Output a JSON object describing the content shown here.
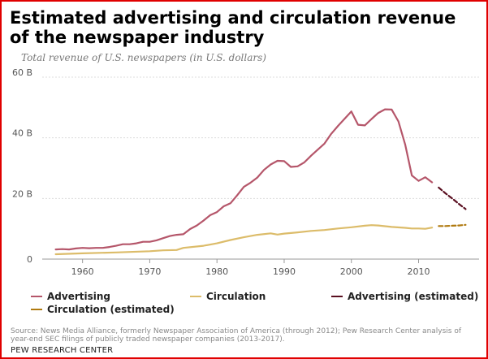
{
  "title": "Estimated advertising and circulation revenue of the newspaper industry",
  "subtitle": "Total revenue of U.S. newspapers (in U.S. dollars)",
  "chart_data": {
    "type": "line",
    "ylim": [
      0,
      60
    ],
    "xlim": [
      1954,
      2019
    ],
    "y_ticks": [
      {
        "value": 0,
        "label": "0"
      },
      {
        "value": 20,
        "label": "20 B"
      },
      {
        "value": 40,
        "label": "40 B"
      },
      {
        "value": 60,
        "label": "60 B"
      }
    ],
    "x_ticks": [
      {
        "value": 1960,
        "label": "1960"
      },
      {
        "value": 1970,
        "label": "1970"
      },
      {
        "value": 1980,
        "label": "1980"
      },
      {
        "value": 1990,
        "label": "1990"
      },
      {
        "value": 2000,
        "label": "2000"
      },
      {
        "value": 2010,
        "label": "2010"
      }
    ],
    "grid": true,
    "legend_position": "bottom",
    "series": [
      {
        "name": "Advertising",
        "color": "#b5566a",
        "dash": "",
        "x": [
          1956,
          1957,
          1958,
          1959,
          1960,
          1961,
          1962,
          1963,
          1964,
          1965,
          1966,
          1967,
          1968,
          1969,
          1970,
          1971,
          1972,
          1973,
          1974,
          1975,
          1976,
          1977,
          1978,
          1979,
          1980,
          1981,
          1982,
          1983,
          1984,
          1985,
          1986,
          1987,
          1988,
          1989,
          1990,
          1991,
          1992,
          1993,
          1994,
          1995,
          1996,
          1997,
          1998,
          1999,
          2000,
          2001,
          2002,
          2003,
          2004,
          2005,
          2006,
          2007,
          2008,
          2009,
          2010,
          2011,
          2012
        ],
        "values": [
          3.2,
          3.3,
          3.2,
          3.5,
          3.7,
          3.6,
          3.7,
          3.7,
          4.0,
          4.4,
          4.9,
          4.9,
          5.2,
          5.7,
          5.7,
          6.2,
          6.9,
          7.6,
          8.0,
          8.2,
          9.9,
          11.1,
          12.7,
          14.5,
          15.5,
          17.4,
          18.4,
          21.0,
          23.8,
          25.2,
          26.9,
          29.4,
          31.2,
          32.4,
          32.3,
          30.4,
          30.6,
          31.9,
          34.1,
          36.1,
          38.1,
          41.3,
          43.9,
          46.3,
          48.7,
          44.3,
          44.1,
          46.2,
          48.2,
          49.4,
          49.3,
          45.4,
          37.8,
          27.6,
          25.8,
          27.0,
          25.3
        ]
      },
      {
        "name": "Circulation",
        "color": "#dcbc6a",
        "dash": "",
        "x": [
          1956,
          1960,
          1965,
          1970,
          1972,
          1974,
          1975,
          1978,
          1980,
          1982,
          1984,
          1986,
          1988,
          1989,
          1990,
          1992,
          1994,
          1996,
          1998,
          2000,
          2002,
          2003,
          2004,
          2006,
          2008,
          2009,
          2010,
          2011,
          2012
        ],
        "values": [
          1.6,
          1.9,
          2.2,
          2.6,
          2.9,
          3.0,
          3.7,
          4.4,
          5.2,
          6.3,
          7.2,
          8.0,
          8.5,
          8.1,
          8.4,
          8.8,
          9.3,
          9.6,
          10.1,
          10.5,
          11.0,
          11.2,
          11.1,
          10.6,
          10.3,
          10.1,
          10.1,
          10.0,
          10.4
        ]
      },
      {
        "name": "Advertising (estimated)",
        "color": "#5a0f20",
        "dash": "5,3",
        "x": [
          2013,
          2014,
          2015,
          2016,
          2017
        ],
        "values": [
          23.6,
          21.7,
          20.0,
          18.2,
          16.5
        ]
      },
      {
        "name": "Circulation (estimated)",
        "color": "#b07a10",
        "dash": "5,3",
        "x": [
          2013,
          2014,
          2015,
          2016,
          2017
        ],
        "values": [
          10.9,
          10.9,
          11.0,
          11.1,
          11.3
        ]
      }
    ]
  },
  "legend": [
    {
      "label": "Advertising",
      "color": "#b5566a"
    },
    {
      "label": "Circulation",
      "color": "#dcbc6a"
    },
    {
      "label": "Advertising (estimated)",
      "color": "#5a0f20"
    },
    {
      "label": "Circulation (estimated)",
      "color": "#b07a10"
    }
  ],
  "source": "Source: News Media Alliance, formerly Newspaper Association of America (through 2012); Pew Research Center analysis of year-end SEC filings of publicly traded newspaper companies (2013-2017).",
  "brand": "PEW RESEARCH CENTER"
}
